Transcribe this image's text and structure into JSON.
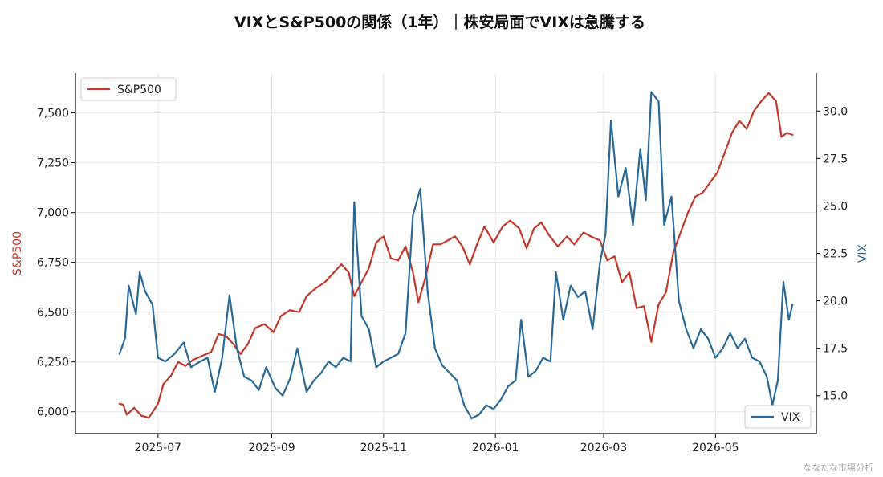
{
  "title": "VIXとS&P500の関係（1年）｜株安局面でVIXは急騰する",
  "watermark": "ななたな市場分析",
  "colors": {
    "sp500": "#c0392b",
    "vix": "#2a6896",
    "grid": "#e6e6e6",
    "axis": "#000000"
  },
  "chart_data": {
    "type": "line",
    "title": "VIXとS&P500の関係（1年）｜株安局面でVIXは急騰する",
    "grid": true,
    "x_range": [
      "2025-05-17",
      "2026-06-25"
    ],
    "x_ticks": [
      "2025-07",
      "2025-09",
      "2025-11",
      "2026-01",
      "2026-03",
      "2026-05"
    ],
    "left_axis": {
      "label": "S&P500",
      "ylim": [
        5890,
        7700
      ],
      "ticks": [
        "6,000",
        "6,250",
        "6,500",
        "6,750",
        "7,000",
        "7,250",
        "7,500"
      ],
      "tick_values": [
        6000,
        6250,
        6500,
        6750,
        7000,
        7250,
        7500
      ]
    },
    "right_axis": {
      "label": "VIX",
      "ylim": [
        13.0,
        32.0
      ],
      "ticks": [
        "15.0",
        "17.5",
        "20.0",
        "22.5",
        "25.0",
        "27.5",
        "30.0"
      ],
      "tick_values": [
        15,
        17.5,
        20,
        22.5,
        25,
        27.5,
        30
      ]
    },
    "series": [
      {
        "name": "S&P500",
        "axis": "left",
        "legend_position": "top-left",
        "points": [
          [
            "2025-06-10",
            6040
          ],
          [
            "2025-06-12",
            6035
          ],
          [
            "2025-06-14",
            5985
          ],
          [
            "2025-06-18",
            6020
          ],
          [
            "2025-06-22",
            5980
          ],
          [
            "2025-06-26",
            5970
          ],
          [
            "2025-07-01",
            6040
          ],
          [
            "2025-07-04",
            6140
          ],
          [
            "2025-07-08",
            6180
          ],
          [
            "2025-07-12",
            6250
          ],
          [
            "2025-07-16",
            6230
          ],
          [
            "2025-07-20",
            6260
          ],
          [
            "2025-07-25",
            6280
          ],
          [
            "2025-07-30",
            6300
          ],
          [
            "2025-08-03",
            6390
          ],
          [
            "2025-08-07",
            6380
          ],
          [
            "2025-08-11",
            6340
          ],
          [
            "2025-08-15",
            6290
          ],
          [
            "2025-08-19",
            6340
          ],
          [
            "2025-08-23",
            6420
          ],
          [
            "2025-08-28",
            6440
          ],
          [
            "2025-09-02",
            6400
          ],
          [
            "2025-09-06",
            6480
          ],
          [
            "2025-09-11",
            6510
          ],
          [
            "2025-09-16",
            6500
          ],
          [
            "2025-09-20",
            6580
          ],
          [
            "2025-09-25",
            6620
          ],
          [
            "2025-09-30",
            6650
          ],
          [
            "2025-10-05",
            6700
          ],
          [
            "2025-10-09",
            6740
          ],
          [
            "2025-10-13",
            6700
          ],
          [
            "2025-10-16",
            6580
          ],
          [
            "2025-10-20",
            6650
          ],
          [
            "2025-10-24",
            6720
          ],
          [
            "2025-10-28",
            6850
          ],
          [
            "2025-11-01",
            6880
          ],
          [
            "2025-11-05",
            6770
          ],
          [
            "2025-11-09",
            6760
          ],
          [
            "2025-11-13",
            6830
          ],
          [
            "2025-11-17",
            6700
          ],
          [
            "2025-11-20",
            6550
          ],
          [
            "2025-11-24",
            6680
          ],
          [
            "2025-11-28",
            6840
          ],
          [
            "2025-12-02",
            6840
          ],
          [
            "2025-12-06",
            6860
          ],
          [
            "2025-12-10",
            6880
          ],
          [
            "2025-12-14",
            6830
          ],
          [
            "2025-12-18",
            6740
          ],
          [
            "2025-12-22",
            6840
          ],
          [
            "2025-12-26",
            6930
          ],
          [
            "2025-12-31",
            6850
          ],
          [
            "2026-01-05",
            6930
          ],
          [
            "2026-01-09",
            6960
          ],
          [
            "2026-01-14",
            6920
          ],
          [
            "2026-01-18",
            6820
          ],
          [
            "2026-01-22",
            6920
          ],
          [
            "2026-01-26",
            6950
          ],
          [
            "2026-01-30",
            6890
          ],
          [
            "2026-02-04",
            6830
          ],
          [
            "2026-02-09",
            6880
          ],
          [
            "2026-02-13",
            6840
          ],
          [
            "2026-02-18",
            6900
          ],
          [
            "2026-02-22",
            6880
          ],
          [
            "2026-02-27",
            6860
          ],
          [
            "2026-03-03",
            6760
          ],
          [
            "2026-03-07",
            6780
          ],
          [
            "2026-03-11",
            6650
          ],
          [
            "2026-03-15",
            6700
          ],
          [
            "2026-03-19",
            6520
          ],
          [
            "2026-03-23",
            6530
          ],
          [
            "2026-03-27",
            6350
          ],
          [
            "2026-03-31",
            6540
          ],
          [
            "2026-04-04",
            6600
          ],
          [
            "2026-04-08",
            6800
          ],
          [
            "2026-04-12",
            6900
          ],
          [
            "2026-04-16",
            7000
          ],
          [
            "2026-04-20",
            7080
          ],
          [
            "2026-04-24",
            7100
          ],
          [
            "2026-04-28",
            7150
          ],
          [
            "2026-05-02",
            7200
          ],
          [
            "2026-05-06",
            7300
          ],
          [
            "2026-05-10",
            7400
          ],
          [
            "2026-05-14",
            7460
          ],
          [
            "2026-05-18",
            7420
          ],
          [
            "2026-05-22",
            7510
          ],
          [
            "2026-05-26",
            7560
          ],
          [
            "2026-05-30",
            7600
          ],
          [
            "2026-06-03",
            7560
          ],
          [
            "2026-06-06",
            7380
          ],
          [
            "2026-06-09",
            7400
          ],
          [
            "2026-06-12",
            7390
          ]
        ]
      },
      {
        "name": "VIX",
        "axis": "right",
        "legend_position": "bottom-right",
        "points": [
          [
            "2025-06-10",
            17.2
          ],
          [
            "2025-06-13",
            18.0
          ],
          [
            "2025-06-15",
            20.8
          ],
          [
            "2025-06-19",
            19.3
          ],
          [
            "2025-06-21",
            21.5
          ],
          [
            "2025-06-24",
            20.5
          ],
          [
            "2025-06-28",
            19.8
          ],
          [
            "2025-07-01",
            17.0
          ],
          [
            "2025-07-05",
            16.8
          ],
          [
            "2025-07-10",
            17.2
          ],
          [
            "2025-07-15",
            17.8
          ],
          [
            "2025-07-19",
            16.5
          ],
          [
            "2025-07-24",
            16.8
          ],
          [
            "2025-07-28",
            17.0
          ],
          [
            "2025-08-01",
            15.2
          ],
          [
            "2025-08-05",
            17.0
          ],
          [
            "2025-08-09",
            20.3
          ],
          [
            "2025-08-13",
            17.5
          ],
          [
            "2025-08-17",
            16.0
          ],
          [
            "2025-08-21",
            15.8
          ],
          [
            "2025-08-25",
            15.3
          ],
          [
            "2025-08-29",
            16.5
          ],
          [
            "2025-09-03",
            15.4
          ],
          [
            "2025-09-07",
            15.0
          ],
          [
            "2025-09-11",
            15.9
          ],
          [
            "2025-09-15",
            17.5
          ],
          [
            "2025-09-20",
            15.2
          ],
          [
            "2025-09-24",
            15.8
          ],
          [
            "2025-09-28",
            16.2
          ],
          [
            "2025-10-02",
            16.8
          ],
          [
            "2025-10-06",
            16.5
          ],
          [
            "2025-10-10",
            17.0
          ],
          [
            "2025-10-14",
            16.8
          ],
          [
            "2025-10-16",
            25.2
          ],
          [
            "2025-10-20",
            19.2
          ],
          [
            "2025-10-24",
            18.5
          ],
          [
            "2025-10-28",
            16.5
          ],
          [
            "2025-11-01",
            16.8
          ],
          [
            "2025-11-05",
            17.0
          ],
          [
            "2025-11-09",
            17.2
          ],
          [
            "2025-11-13",
            18.3
          ],
          [
            "2025-11-17",
            24.5
          ],
          [
            "2025-11-21",
            25.9
          ],
          [
            "2025-11-25",
            20.5
          ],
          [
            "2025-11-29",
            17.5
          ],
          [
            "2025-12-03",
            16.6
          ],
          [
            "2025-12-07",
            16.2
          ],
          [
            "2025-12-11",
            15.8
          ],
          [
            "2025-12-15",
            14.5
          ],
          [
            "2025-12-19",
            13.8
          ],
          [
            "2025-12-23",
            14.0
          ],
          [
            "2025-12-27",
            14.5
          ],
          [
            "2025-12-31",
            14.3
          ],
          [
            "2026-01-04",
            14.8
          ],
          [
            "2026-01-08",
            15.5
          ],
          [
            "2026-01-12",
            15.8
          ],
          [
            "2026-01-15",
            19.0
          ],
          [
            "2026-01-19",
            16.0
          ],
          [
            "2026-01-23",
            16.3
          ],
          [
            "2026-01-27",
            17.0
          ],
          [
            "2026-01-31",
            16.8
          ],
          [
            "2026-02-03",
            21.5
          ],
          [
            "2026-02-07",
            19.0
          ],
          [
            "2026-02-11",
            20.8
          ],
          [
            "2026-02-15",
            20.2
          ],
          [
            "2026-02-19",
            20.5
          ],
          [
            "2026-02-23",
            18.5
          ],
          [
            "2026-02-27",
            22.0
          ],
          [
            "2026-03-02",
            23.5
          ],
          [
            "2026-03-05",
            29.5
          ],
          [
            "2026-03-09",
            25.5
          ],
          [
            "2026-03-13",
            27.0
          ],
          [
            "2026-03-17",
            24.0
          ],
          [
            "2026-03-21",
            28.0
          ],
          [
            "2026-03-24",
            25.3
          ],
          [
            "2026-03-27",
            31.0
          ],
          [
            "2026-03-31",
            30.5
          ],
          [
            "2026-04-03",
            24.0
          ],
          [
            "2026-04-07",
            25.5
          ],
          [
            "2026-04-11",
            20.0
          ],
          [
            "2026-04-15",
            18.5
          ],
          [
            "2026-04-19",
            17.5
          ],
          [
            "2026-04-23",
            18.5
          ],
          [
            "2026-04-27",
            18.0
          ],
          [
            "2026-05-01",
            17.0
          ],
          [
            "2026-05-05",
            17.5
          ],
          [
            "2026-05-09",
            18.3
          ],
          [
            "2026-05-13",
            17.5
          ],
          [
            "2026-05-17",
            18.0
          ],
          [
            "2026-05-21",
            17.0
          ],
          [
            "2026-05-25",
            16.8
          ],
          [
            "2026-05-29",
            16.0
          ],
          [
            "2026-06-01",
            14.5
          ],
          [
            "2026-06-04",
            15.8
          ],
          [
            "2026-06-07",
            21.0
          ],
          [
            "2026-06-10",
            19.0
          ],
          [
            "2026-06-12",
            19.8
          ]
        ]
      }
    ]
  }
}
